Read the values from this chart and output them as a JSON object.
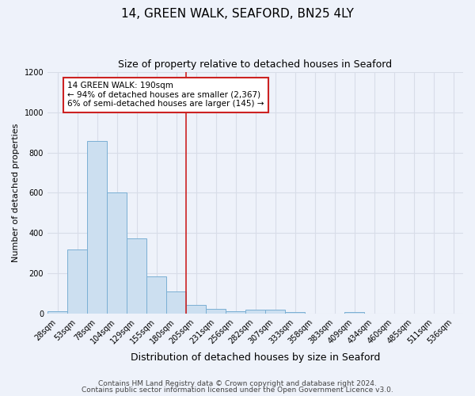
{
  "title": "14, GREEN WALK, SEAFORD, BN25 4LY",
  "subtitle": "Size of property relative to detached houses in Seaford",
  "xlabel": "Distribution of detached houses by size in Seaford",
  "ylabel": "Number of detached properties",
  "categories": [
    "28sqm",
    "53sqm",
    "78sqm",
    "104sqm",
    "129sqm",
    "155sqm",
    "180sqm",
    "205sqm",
    "231sqm",
    "256sqm",
    "282sqm",
    "307sqm",
    "333sqm",
    "358sqm",
    "383sqm",
    "409sqm",
    "434sqm",
    "460sqm",
    "485sqm",
    "511sqm",
    "536sqm"
  ],
  "values": [
    15,
    320,
    855,
    600,
    375,
    185,
    110,
    45,
    25,
    15,
    20,
    20,
    10,
    0,
    0,
    10,
    0,
    0,
    0,
    0,
    0
  ],
  "bar_color": "#ccdff0",
  "bar_edge_color": "#7aafd4",
  "red_line_x": 6.5,
  "annotation_text": "14 GREEN WALK: 190sqm\n← 94% of detached houses are smaller (2,367)\n6% of semi-detached houses are larger (145) →",
  "annotation_box_color": "#ffffff",
  "annotation_box_edge_color": "#cc2222",
  "ylim": [
    0,
    1200
  ],
  "yticks": [
    0,
    200,
    400,
    600,
    800,
    1000,
    1200
  ],
  "footnote1": "Contains HM Land Registry data © Crown copyright and database right 2024.",
  "footnote2": "Contains public sector information licensed under the Open Government Licence v3.0.",
  "background_color": "#eef2fa",
  "grid_color": "#d8dde8",
  "title_fontsize": 11,
  "subtitle_fontsize": 9,
  "xlabel_fontsize": 9,
  "ylabel_fontsize": 8,
  "tick_fontsize": 7,
  "annotation_fontsize": 7.5,
  "footnote_fontsize": 6.5
}
